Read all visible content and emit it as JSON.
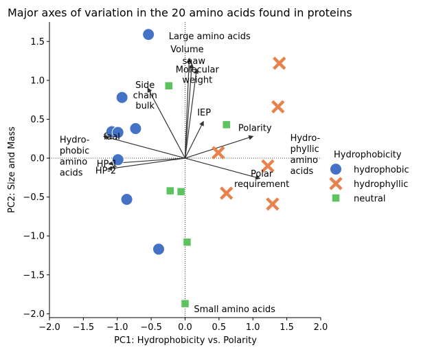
{
  "chart_data": {
    "type": "scatter",
    "title": "Major axes of variation in the 20 amino acids found in proteins",
    "xlabel": "PC1: Hydrophobicity vs. Polarity",
    "ylabel": "PC2: Size and Mass",
    "xlim": [
      -2.0,
      2.0
    ],
    "ylim": [
      -2.05,
      1.75
    ],
    "xticks": [
      "−2.0",
      "−1.5",
      "−1.0",
      "−0.5",
      "0.0",
      "0.5",
      "1.0",
      "1.5",
      "2.0"
    ],
    "yticks": [
      "−2.0",
      "−1.5",
      "−1.0",
      "−0.5",
      "0.0",
      "0.5",
      "1.0",
      "1.5"
    ],
    "xtick_values": [
      -2.0,
      -1.5,
      -1.0,
      -0.5,
      0.0,
      0.5,
      1.0,
      1.5,
      2.0
    ],
    "ytick_values": [
      -2.0,
      -1.5,
      -1.0,
      -0.5,
      0.0,
      0.5,
      1.0,
      1.5
    ],
    "reference_lines": {
      "x": 0,
      "y": 0,
      "style": "dotted"
    },
    "legend": {
      "title": "Hydrophobicity",
      "placement": "outside-right"
    },
    "series": [
      {
        "name": "hydrophobic",
        "marker": "circle",
        "color": "#4472c4",
        "points": [
          {
            "x": -0.54,
            "y": 1.59
          },
          {
            "x": -0.93,
            "y": 0.78
          },
          {
            "x": -1.08,
            "y": 0.34
          },
          {
            "x": -0.99,
            "y": 0.33
          },
          {
            "x": -0.73,
            "y": 0.38
          },
          {
            "x": -0.99,
            "y": -0.02
          },
          {
            "x": -0.86,
            "y": -0.53
          },
          {
            "x": -0.39,
            "y": -1.17
          }
        ]
      },
      {
        "name": "hydrophyllic",
        "marker": "x",
        "color": "#e8824c",
        "points": [
          {
            "x": 1.39,
            "y": 1.22
          },
          {
            "x": 1.37,
            "y": 0.66
          },
          {
            "x": 0.49,
            "y": 0.07
          },
          {
            "x": 1.22,
            "y": -0.1
          },
          {
            "x": 0.61,
            "y": -0.45
          },
          {
            "x": 1.29,
            "y": -0.59
          }
        ]
      },
      {
        "name": "neutral",
        "marker": "square",
        "color": "#5cc35e",
        "points": [
          {
            "x": -0.24,
            "y": 0.93
          },
          {
            "x": 0.61,
            "y": 0.43
          },
          {
            "x": -0.22,
            "y": -0.42
          },
          {
            "x": -0.06,
            "y": -0.43
          },
          {
            "x": 0.03,
            "y": -1.08
          },
          {
            "x": 0.0,
            "y": -1.87
          }
        ]
      }
    ],
    "loadings": [
      {
        "label": "Side\nchain\nbulk",
        "x": -0.55,
        "y": 0.9,
        "tx": -0.59,
        "ty": 0.9,
        "anchor": "middle"
      },
      {
        "label": "Volume",
        "x": 0.06,
        "y": 1.28,
        "tx": 0.03,
        "ty": 1.36,
        "anchor": "middle"
      },
      {
        "label": "saaw",
        "x": 0.1,
        "y": 1.21,
        "tx": 0.13,
        "ty": 1.21,
        "anchor": "middle"
      },
      {
        "label": "Molecular\nweight",
        "x": 0.17,
        "y": 1.14,
        "tx": 0.18,
        "ty": 1.1,
        "anchor": "middle"
      },
      {
        "label": "IEP",
        "x": 0.27,
        "y": 0.47,
        "tx": 0.28,
        "ty": 0.55,
        "anchor": "middle"
      },
      {
        "label": "Polarity",
        "x": 1.0,
        "y": 0.28,
        "tx": 1.03,
        "ty": 0.35,
        "anchor": "middle"
      },
      {
        "label": "Polar\nrequirement",
        "x": 1.1,
        "y": -0.26,
        "tx": 1.13,
        "ty": -0.24,
        "anchor": "middle"
      },
      {
        "label": "faal",
        "x": -1.2,
        "y": 0.28,
        "tx": -1.08,
        "ty": 0.24,
        "anchor": "middle"
      },
      {
        "label": "HP-1",
        "x": -1.12,
        "y": -0.07,
        "tx": -1.15,
        "ty": -0.11,
        "anchor": "middle"
      },
      {
        "label": "HP-2",
        "x": -1.14,
        "y": -0.14,
        "tx": -1.17,
        "ty": -0.2,
        "anchor": "middle"
      }
    ],
    "annotations": [
      {
        "text": "Large amino acids",
        "x": -0.24,
        "y": 1.53,
        "anchor": "start"
      },
      {
        "text": "Small amino acids",
        "x": 0.13,
        "y": -1.98,
        "anchor": "start"
      },
      {
        "text": "Hydro-\nphobic\namino\nacids",
        "x": -1.85,
        "y": 0.2,
        "anchor": "start"
      },
      {
        "text": "Hydro-\nphyllic\namino\nacids",
        "x": 1.55,
        "y": 0.22,
        "anchor": "start"
      }
    ]
  }
}
